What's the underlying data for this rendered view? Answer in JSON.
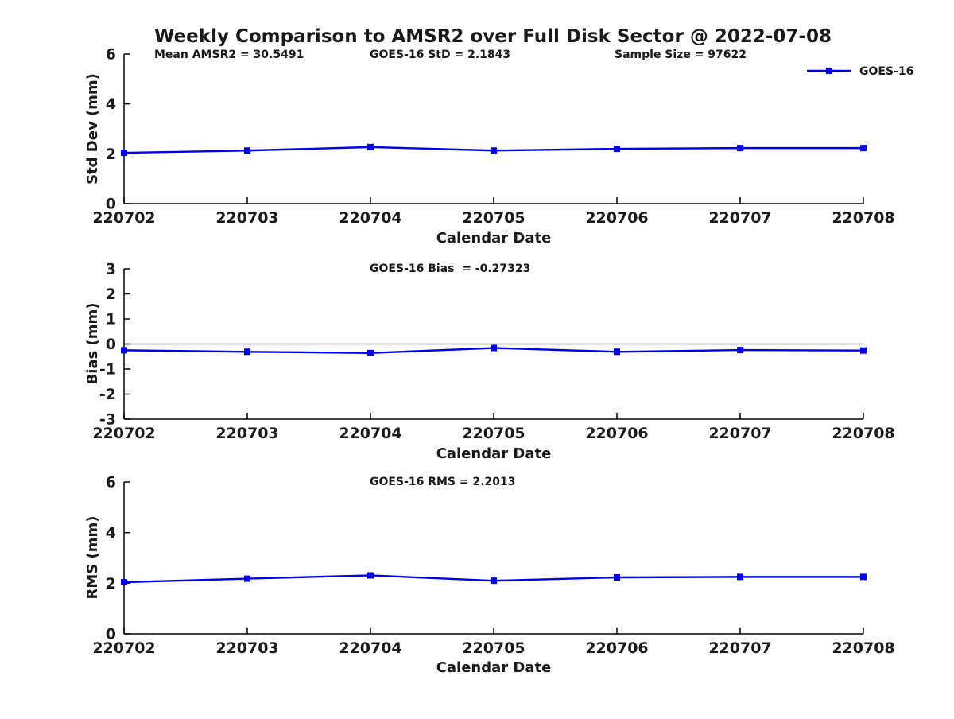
{
  "figure": {
    "title": "Weekly Comparison to AMSR2 over Full Disk Sector @ 2022-07-08",
    "background_color": "#ffffff",
    "line_color": "#0000ee",
    "axis_color": "#000000",
    "text_color": "#1a1a1a"
  },
  "legend": {
    "label": "GOES-16",
    "position": "top-right-above-axes"
  },
  "annotations": {
    "mean_amsr2": "Mean AMSR2 = 30.5491",
    "goes16_std": "GOES-16 StD = 2.1843",
    "sample_size": "Sample Size = 97622",
    "goes16_bias": "GOES-16 Bias  = -0.27323",
    "goes16_rms": "GOES-16 RMS = 2.2013"
  },
  "chart_data": [
    {
      "type": "line",
      "title": "Std Dev subplot (annotations: Mean AMSR2 = 30.5491, GOES-16 StD = 2.1843, Sample Size = 97622)",
      "x": [
        "220702",
        "220703",
        "220704",
        "220705",
        "220706",
        "220707",
        "220708"
      ],
      "series": [
        {
          "name": "GOES-16",
          "values": [
            2.04,
            2.13,
            2.27,
            2.13,
            2.2,
            2.23,
            2.23
          ]
        }
      ],
      "xlabel": "Calendar Date",
      "ylabel": "Std Dev (mm)",
      "ylim": [
        0,
        6
      ],
      "yticks": [
        0,
        2,
        4,
        6
      ],
      "grid": false,
      "zero_line": false,
      "legend_position": "top-right"
    },
    {
      "type": "line",
      "title": "GOES-16 Bias  = -0.27323",
      "x": [
        "220702",
        "220703",
        "220704",
        "220705",
        "220706",
        "220707",
        "220708"
      ],
      "series": [
        {
          "name": "GOES-16",
          "values": [
            -0.25,
            -0.31,
            -0.36,
            -0.16,
            -0.31,
            -0.24,
            -0.26
          ]
        }
      ],
      "xlabel": "Calendar Date",
      "ylabel": "Bias (mm)",
      "ylim": [
        -3,
        3
      ],
      "yticks": [
        -3,
        -2,
        -1,
        0,
        1,
        2,
        3
      ],
      "grid": false,
      "zero_line": true,
      "legend_position": "none"
    },
    {
      "type": "line",
      "title": "GOES-16 RMS = 2.2013",
      "x": [
        "220702",
        "220703",
        "220704",
        "220705",
        "220706",
        "220707",
        "220708"
      ],
      "series": [
        {
          "name": "GOES-16",
          "values": [
            2.04,
            2.18,
            2.31,
            2.1,
            2.23,
            2.25,
            2.25
          ]
        }
      ],
      "xlabel": "Calendar Date",
      "ylabel": "RMS (mm)",
      "ylim": [
        0,
        6
      ],
      "yticks": [
        0,
        2,
        4,
        6
      ],
      "grid": false,
      "zero_line": false,
      "legend_position": "none"
    }
  ]
}
